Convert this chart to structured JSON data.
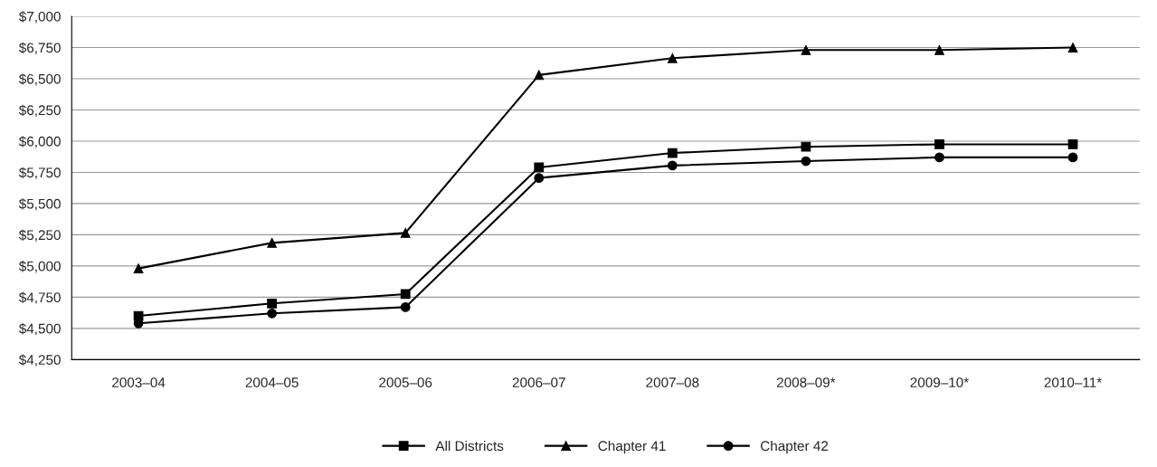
{
  "chart_data": {
    "type": "line",
    "categories": [
      "2003–04",
      "2004–05",
      "2005–06",
      "2006–07",
      "2007–08",
      "2008–09*",
      "2009–10*",
      "2010–11*"
    ],
    "series": [
      {
        "name": "All Districts",
        "color": "#000000",
        "marker": "square",
        "values": [
          4600,
          4700,
          4775,
          5790,
          5905,
          5955,
          5975,
          5975
        ]
      },
      {
        "name": "Chapter 41",
        "color": "#000000",
        "marker": "triangle",
        "values": [
          4980,
          5185,
          5265,
          6530,
          6665,
          6730,
          6730,
          6750
        ]
      },
      {
        "name": "Chapter 42",
        "color": "#000000",
        "marker": "circle",
        "values": [
          4540,
          4620,
          4670,
          5705,
          5805,
          5840,
          5870,
          5870
        ]
      }
    ],
    "ylim": [
      4250,
      7000
    ],
    "yticks": [
      {
        "value": 4250,
        "label": "$4,250"
      },
      {
        "value": 4500,
        "label": "$4,500"
      },
      {
        "value": 4750,
        "label": "$4,750"
      },
      {
        "value": 5000,
        "label": "$5,000"
      },
      {
        "value": 5250,
        "label": "$5,250"
      },
      {
        "value": 5500,
        "label": "$5,500"
      },
      {
        "value": 5750,
        "label": "$5,750"
      },
      {
        "value": 6000,
        "label": "$6,000"
      },
      {
        "value": 6250,
        "label": "$6,250"
      },
      {
        "value": 6500,
        "label": "$6,500"
      },
      {
        "value": 6750,
        "label": "$6,750"
      },
      {
        "value": 7000,
        "label": "$7,000"
      }
    ],
    "grid": "y",
    "legend": "bottom",
    "line_style": "solid"
  }
}
